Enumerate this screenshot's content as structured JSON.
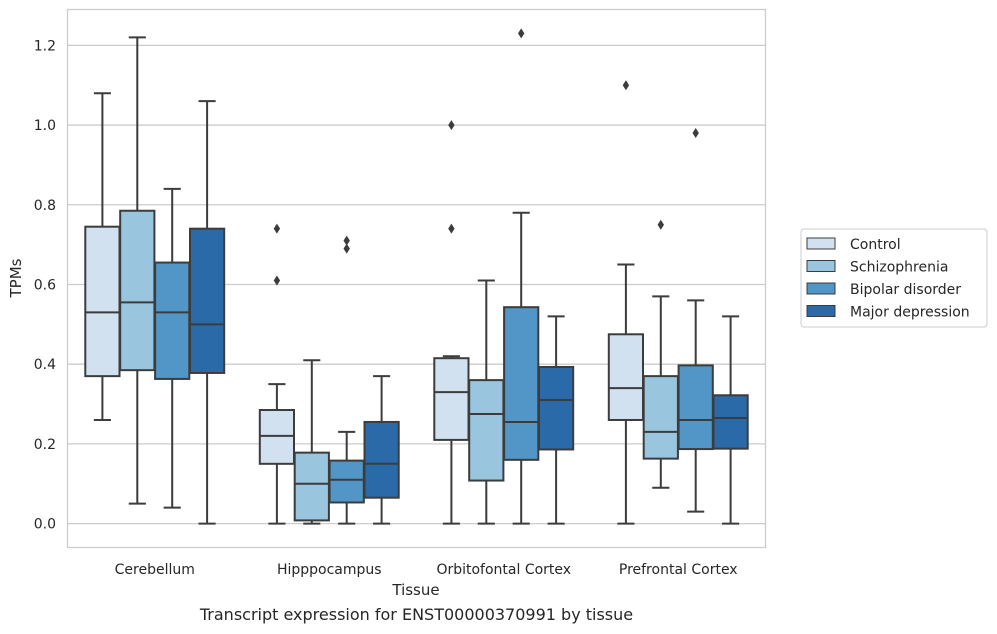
{
  "caption": "Transcript expression for ENST00000370991 by tissue",
  "chart_data": {
    "type": "boxplot",
    "title": "",
    "xlabel": "Tissue",
    "ylabel": "TPMs",
    "ylim": [
      -0.06,
      1.29
    ],
    "yticks": [
      0.0,
      0.2,
      0.4,
      0.6,
      0.8,
      1.0,
      1.2
    ],
    "ytick_labels": [
      "0.0",
      "0.2",
      "0.4",
      "0.6",
      "0.8",
      "1.0",
      "1.2"
    ],
    "grid": "horizontal",
    "legend_position": "right",
    "categories": [
      "Cerebellum",
      "Hipppocampus",
      "Orbitofontal Cortex",
      "Prefrontal Cortex"
    ],
    "series": [
      {
        "name": "Control",
        "color": "#d2e1f0",
        "boxes": [
          {
            "whislo": 0.26,
            "q1": 0.37,
            "med": 0.53,
            "q3": 0.745,
            "whishi": 1.08,
            "fliers": []
          },
          {
            "whislo": 0.0,
            "q1": 0.15,
            "med": 0.22,
            "q3": 0.285,
            "whishi": 0.35,
            "fliers": [
              0.61,
              0.74
            ]
          },
          {
            "whislo": 0.0,
            "q1": 0.21,
            "med": 0.33,
            "q3": 0.415,
            "whishi": 0.42,
            "fliers": [
              0.74,
              1.0
            ]
          },
          {
            "whislo": 0.0,
            "q1": 0.26,
            "med": 0.34,
            "q3": 0.475,
            "whishi": 0.65,
            "fliers": [
              1.1
            ]
          }
        ]
      },
      {
        "name": "Schizophrenia",
        "color": "#9ac5de",
        "boxes": [
          {
            "whislo": 0.05,
            "q1": 0.385,
            "med": 0.555,
            "q3": 0.785,
            "whishi": 1.22,
            "fliers": []
          },
          {
            "whislo": 0.0,
            "q1": 0.008,
            "med": 0.1,
            "q3": 0.178,
            "whishi": 0.41,
            "fliers": []
          },
          {
            "whislo": 0.0,
            "q1": 0.108,
            "med": 0.275,
            "q3": 0.36,
            "whishi": 0.61,
            "fliers": []
          },
          {
            "whislo": 0.09,
            "q1": 0.163,
            "med": 0.23,
            "q3": 0.37,
            "whishi": 0.57,
            "fliers": [
              0.75
            ]
          }
        ]
      },
      {
        "name": "Bipolar disorder",
        "color": "#5196c6",
        "boxes": [
          {
            "whislo": 0.04,
            "q1": 0.363,
            "med": 0.53,
            "q3": 0.655,
            "whishi": 0.84,
            "fliers": []
          },
          {
            "whislo": 0.0,
            "q1": 0.053,
            "med": 0.11,
            "q3": 0.158,
            "whishi": 0.23,
            "fliers": [
              0.69,
              0.71
            ]
          },
          {
            "whislo": 0.0,
            "q1": 0.16,
            "med": 0.255,
            "q3": 0.543,
            "whishi": 0.78,
            "fliers": [
              1.23
            ]
          },
          {
            "whislo": 0.03,
            "q1": 0.187,
            "med": 0.26,
            "q3": 0.397,
            "whishi": 0.56,
            "fliers": [
              0.98
            ]
          }
        ]
      },
      {
        "name": "Major depression",
        "color": "#2b6aa8",
        "boxes": [
          {
            "whislo": 0.0,
            "q1": 0.378,
            "med": 0.5,
            "q3": 0.74,
            "whishi": 1.06,
            "fliers": []
          },
          {
            "whislo": 0.0,
            "q1": 0.065,
            "med": 0.15,
            "q3": 0.255,
            "whishi": 0.37,
            "fliers": []
          },
          {
            "whislo": 0.0,
            "q1": 0.186,
            "med": 0.31,
            "q3": 0.393,
            "whishi": 0.52,
            "fliers": []
          },
          {
            "whislo": 0.0,
            "q1": 0.188,
            "med": 0.265,
            "q3": 0.322,
            "whishi": 0.52,
            "fliers": []
          }
        ]
      }
    ]
  }
}
